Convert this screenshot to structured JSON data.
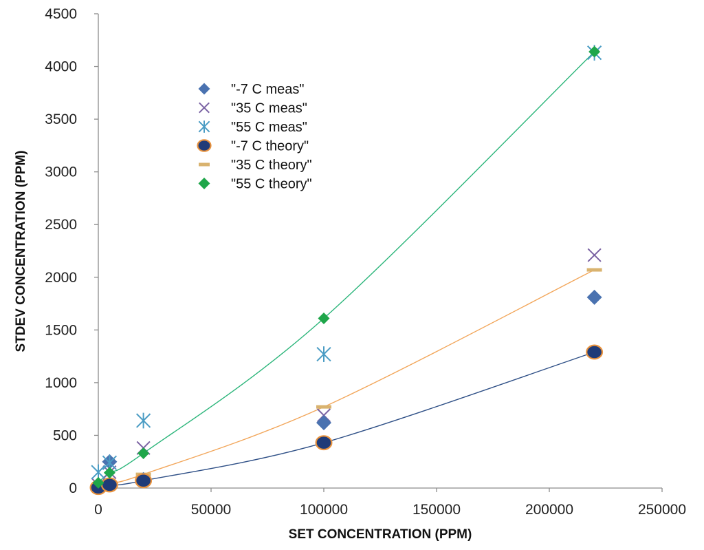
{
  "chart_data": {
    "type": "scatter",
    "title": "",
    "xlabel": "SET CONCENTRATION (PPM)",
    "ylabel": "STDEV CONCENTRATION (PPM)",
    "xlim": [
      0,
      250000
    ],
    "ylim": [
      0,
      4500
    ],
    "x_ticks": [
      0,
      50000,
      100000,
      150000,
      200000,
      250000
    ],
    "y_ticks": [
      0,
      500,
      1000,
      1500,
      2000,
      2500,
      3000,
      3500,
      4000,
      4500
    ],
    "x_tick_labels": [
      "0",
      "50000",
      "100000",
      "150000",
      "200000",
      "250000"
    ],
    "y_tick_labels": [
      "0",
      "500",
      "1000",
      "1500",
      "2000",
      "2500",
      "3000",
      "3500",
      "4000",
      "4500"
    ],
    "grid": false,
    "legend_position": "upper-left",
    "series": [
      {
        "name": "\"-7 C meas\"",
        "marker": "diamond",
        "color": "#4a72b0",
        "x": [
          0,
          5000,
          20000,
          100000,
          220000
        ],
        "y": [
          20,
          250,
          80,
          620,
          1810
        ]
      },
      {
        "name": "\"35 C meas\"",
        "marker": "x",
        "color": "#7a62a3",
        "x": [
          0,
          5000,
          20000,
          100000,
          220000
        ],
        "y": [
          30,
          150,
          380,
          690,
          2210
        ]
      },
      {
        "name": "\"55 C meas\"",
        "marker": "asterisk",
        "color": "#4a9cc4",
        "x": [
          0,
          5000,
          20000,
          100000,
          220000
        ],
        "y": [
          150,
          240,
          640,
          1270,
          4130
        ]
      },
      {
        "name": "\"-7 C theory\"",
        "marker": "circle",
        "color": "#1f3b78",
        "edge_color": "#e8923e",
        "x": [
          0,
          5000,
          20000,
          100000,
          220000
        ],
        "y": [
          5,
          30,
          70,
          430,
          1290
        ]
      },
      {
        "name": "\"35 C theory\"",
        "marker": "dash",
        "color": "#d9b36f",
        "x": [
          0,
          5000,
          20000,
          100000,
          220000
        ],
        "y": [
          10,
          50,
          130,
          770,
          2070
        ]
      },
      {
        "name": "\"55 C theory\"",
        "marker": "diamond",
        "color": "#1fa64a",
        "x": [
          0,
          5000,
          20000,
          100000,
          220000
        ],
        "y": [
          50,
          145,
          330,
          1610,
          4140
        ]
      }
    ],
    "trendlines": [
      {
        "series": "\"-7 C theory\"",
        "color": "#2e4f86",
        "x": [
          0,
          5000,
          20000,
          100000,
          220000
        ],
        "y": [
          5,
          30,
          70,
          430,
          1290
        ]
      },
      {
        "series": "\"35 C theory\"",
        "color": "#f2a65a",
        "x": [
          0,
          5000,
          20000,
          100000,
          220000
        ],
        "y": [
          10,
          50,
          130,
          770,
          2070
        ]
      },
      {
        "series": "\"55 C theory\"",
        "color": "#2bb57a",
        "x": [
          0,
          5000,
          20000,
          100000,
          220000
        ],
        "y": [
          50,
          145,
          330,
          1610,
          4140
        ]
      }
    ]
  }
}
